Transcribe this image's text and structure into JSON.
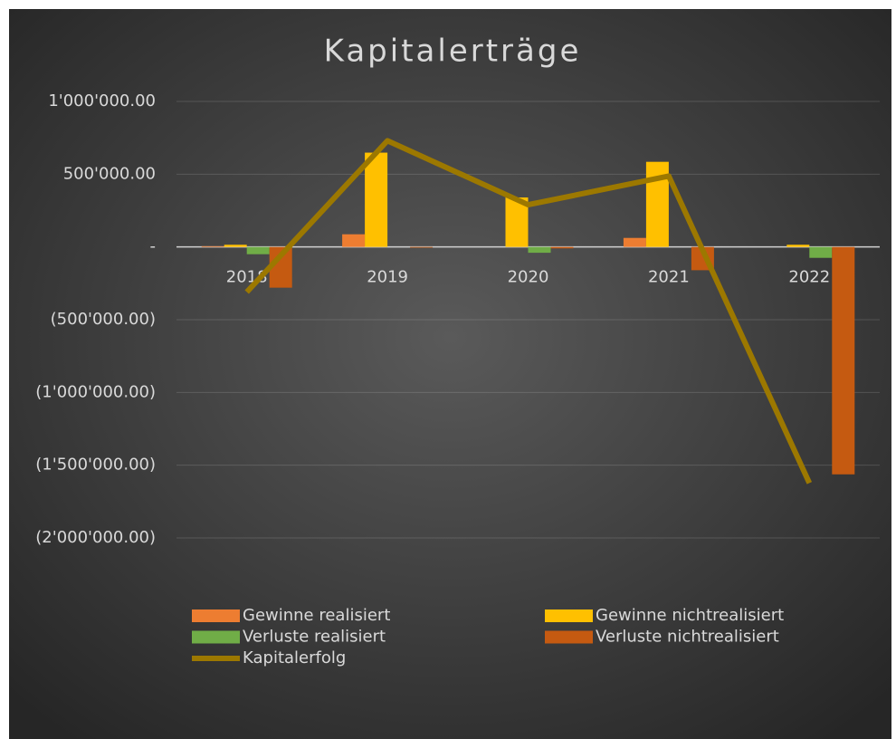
{
  "chart_data": {
    "type": "bar",
    "title": "Kapitalerträge",
    "categories": [
      "2018",
      "2019",
      "2020",
      "2021",
      "2022"
    ],
    "series": [
      {
        "name": "Gewinne realisiert",
        "color": "#ed7d31",
        "values": [
          5000,
          87000,
          0,
          62000,
          0
        ]
      },
      {
        "name": "Gewinne nichtrealisiert",
        "color": "#ffc000",
        "values": [
          15000,
          648000,
          340000,
          585000,
          15000
        ]
      },
      {
        "name": "Verluste realisiert",
        "color": "#70ad47",
        "values": [
          -50000,
          0,
          -40000,
          0,
          -75000
        ]
      },
      {
        "name": "Verluste nichtrealisiert",
        "color": "#c55a11",
        "values": [
          -280000,
          -5000,
          -10000,
          -160000,
          -1563000
        ]
      },
      {
        "name": "Kapitalerfolg",
        "type": "line",
        "color": "#9c7800",
        "values": [
          -310000,
          730000,
          290000,
          487000,
          -1623000
        ]
      }
    ],
    "ylim": [
      -2000000,
      1000000
    ],
    "yticks": [
      {
        "value": 1000000,
        "label": "1'000'000.00"
      },
      {
        "value": 500000,
        "label": "500'000.00"
      },
      {
        "value": 0,
        "label": "-"
      },
      {
        "value": -500000,
        "label": "(500'000.00)"
      },
      {
        "value": -1000000,
        "label": "(1'000'000.00)"
      },
      {
        "value": -1500000,
        "label": "(1'500'000.00)"
      },
      {
        "value": -2000000,
        "label": "(2'000'000.00)"
      }
    ],
    "grid": true,
    "legend": "bottom"
  }
}
